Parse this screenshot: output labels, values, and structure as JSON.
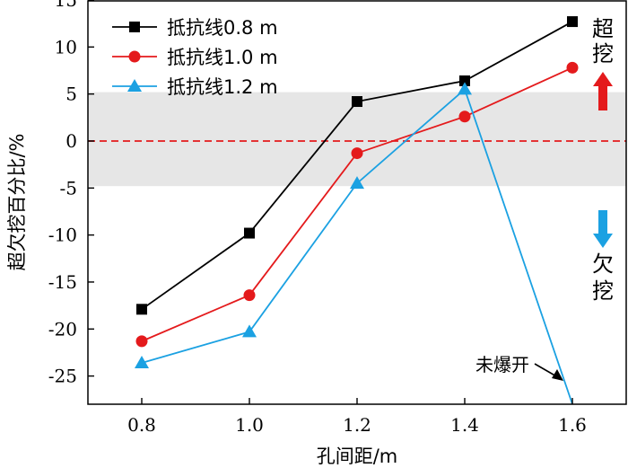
{
  "chart_data": {
    "type": "line",
    "xlabel": "孔间距/m",
    "ylabel": "超欠挖百分比/%",
    "xlim": [
      0.7,
      1.7
    ],
    "ylim": [
      -28,
      15
    ],
    "xticks": [
      "0.8",
      "1.0",
      "1.2",
      "1.4",
      "1.6"
    ],
    "yticks": [
      "15",
      "10",
      "5",
      "0",
      "-5",
      "-10",
      "-15",
      "-20",
      "-25"
    ],
    "x": [
      0.8,
      1.0,
      1.2,
      1.4,
      1.6
    ],
    "series": [
      {
        "name": "抵抗线0.8 m",
        "color": "#000000",
        "marker": "square",
        "values": [
          -17.9,
          -9.8,
          4.2,
          6.4,
          12.7
        ]
      },
      {
        "name": "抵抗线1.0 m",
        "color": "#e41a1c",
        "marker": "circle",
        "values": [
          -21.3,
          -16.4,
          -1.3,
          2.6,
          7.8
        ]
      },
      {
        "name": "抵抗线1.2 m",
        "color": "#1ba1e2",
        "marker": "triangle",
        "values": [
          -23.6,
          -20.3,
          -4.5,
          5.5,
          -28
        ]
      }
    ],
    "band": {
      "from": -4.8,
      "to": 5.2,
      "color": "#e6e6e6"
    },
    "reference_line": {
      "y": 0,
      "color": "#e41a1c",
      "style": "dashed"
    },
    "annotation": {
      "text": "未爆开"
    },
    "over_label": "超挖",
    "under_label": "欠挖",
    "over_arrow_color": "#e41a1c",
    "under_arrow_color": "#1ba1e2",
    "legend_position": "top-left",
    "grid": false
  }
}
